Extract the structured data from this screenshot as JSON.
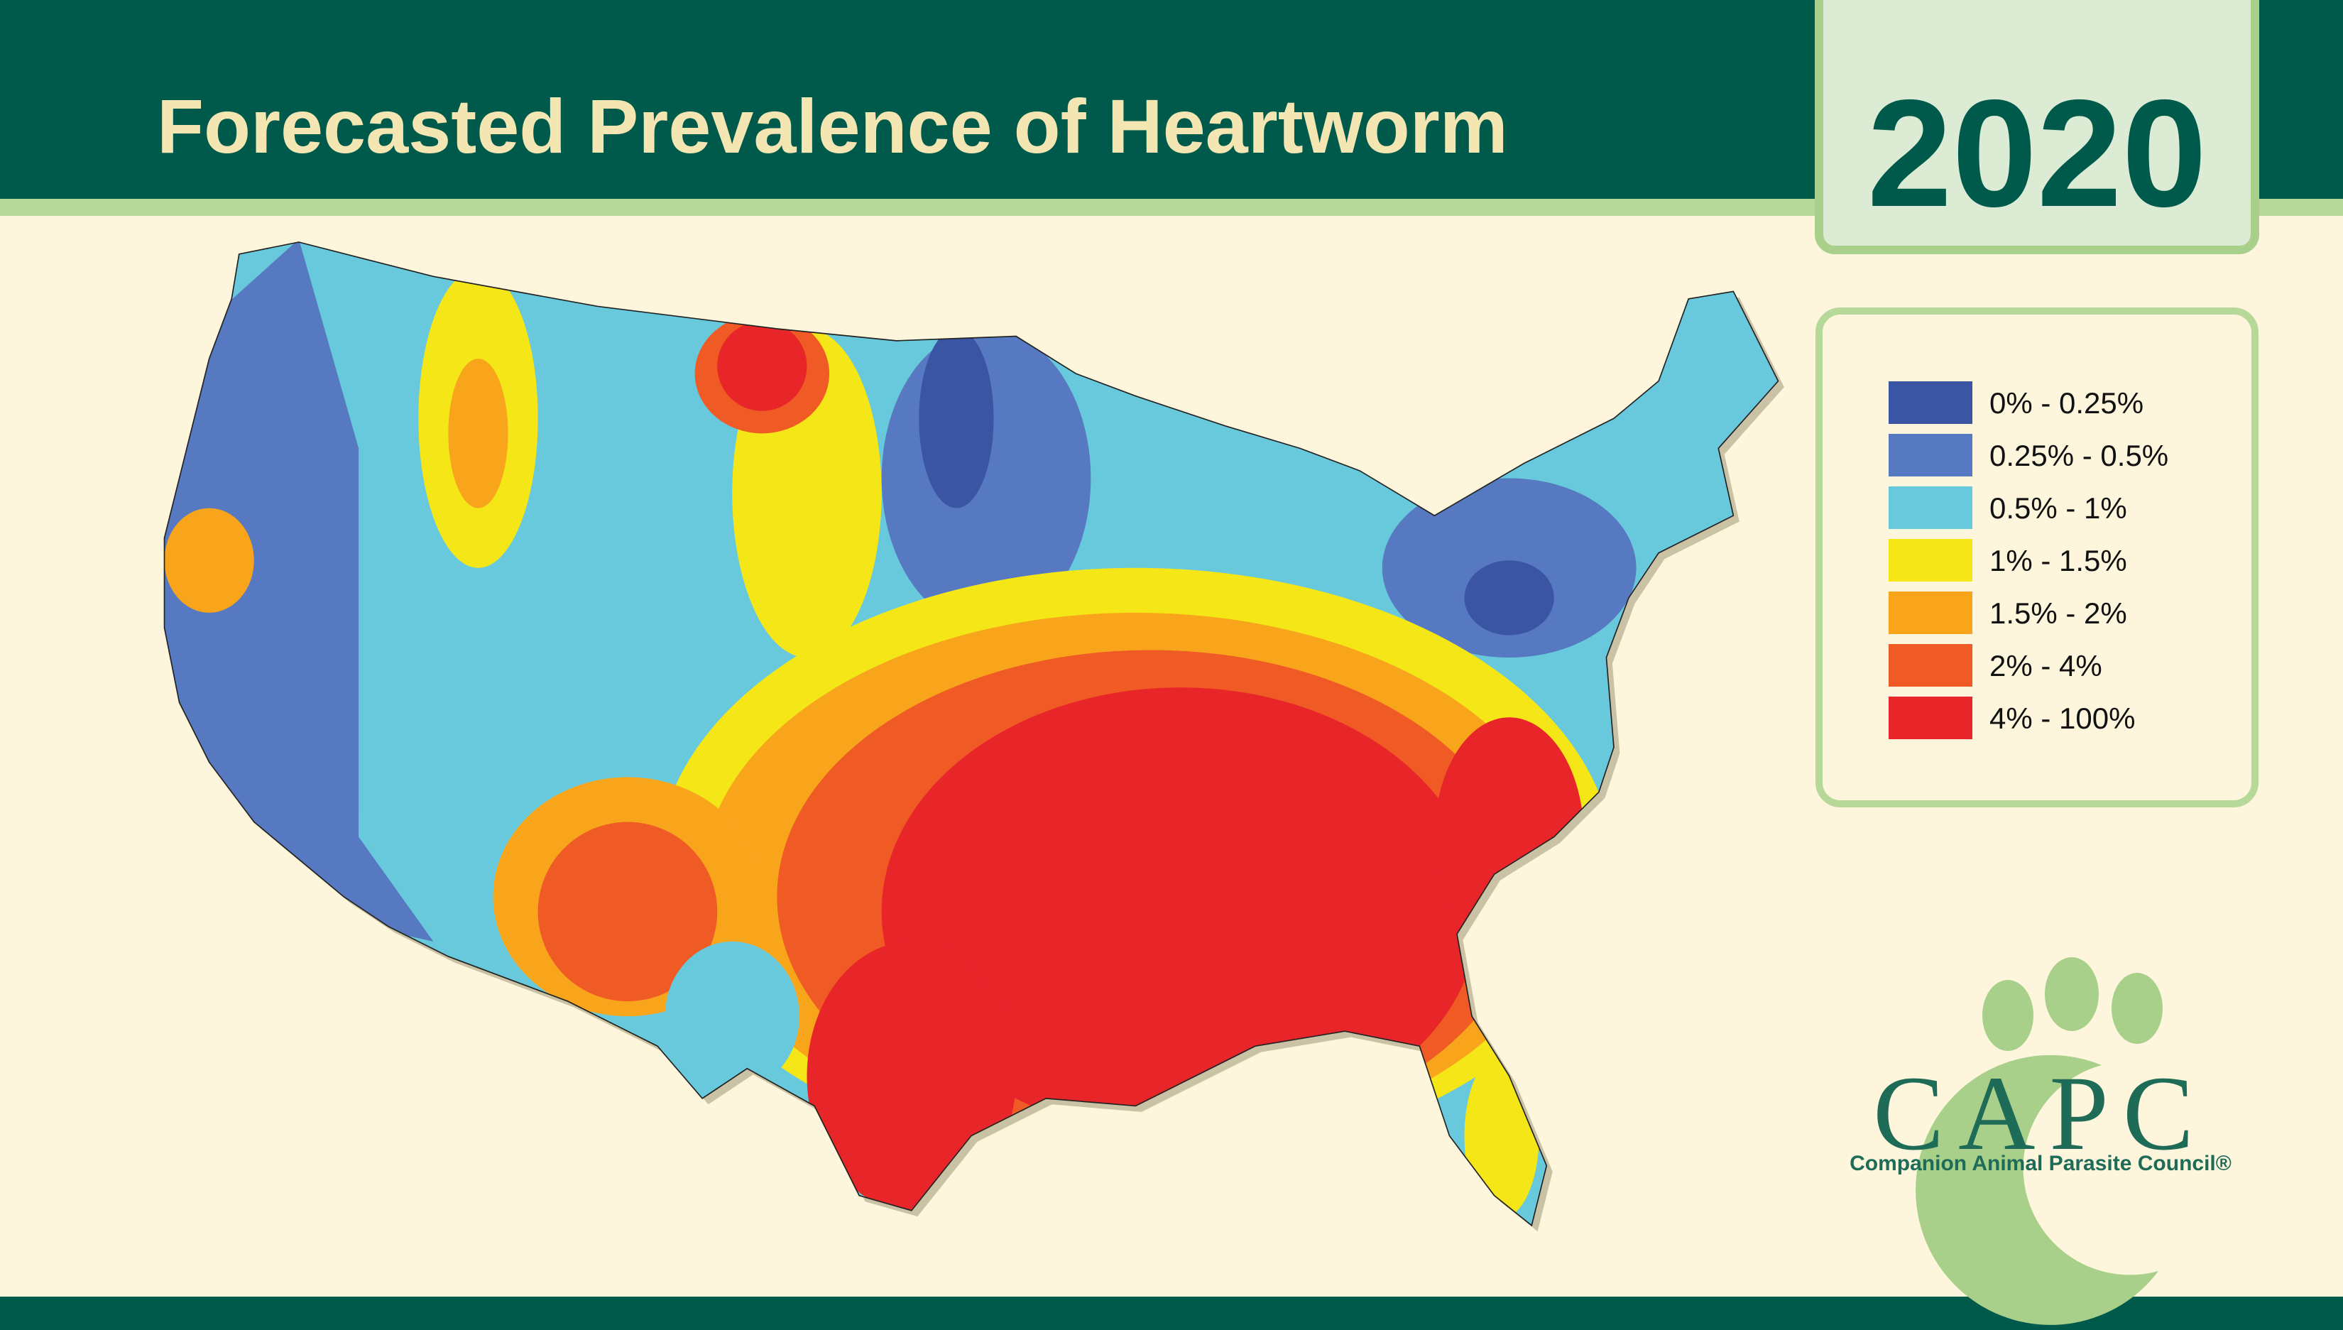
{
  "header": {
    "title": "Forecasted Prevalence of Heartworm",
    "year": "2020"
  },
  "legend": {
    "items": [
      {
        "label": "0% - 0.25%",
        "color": "#3a55a4"
      },
      {
        "label": "0.25% - 0.5%",
        "color": "#5679c1"
      },
      {
        "label": "0.5% - 1%",
        "color": "#69c9dc"
      },
      {
        "label": "1% - 1.5%",
        "color": "#f5e617"
      },
      {
        "label": "1.5% - 2%",
        "color": "#f8a51c"
      },
      {
        "label": "2% - 4%",
        "color": "#f05a24"
      },
      {
        "label": "4% - 100%",
        "color": "#e8262a"
      }
    ]
  },
  "logo": {
    "name": "CAPC",
    "subtitle": "Companion Animal Parasite Council®"
  }
}
